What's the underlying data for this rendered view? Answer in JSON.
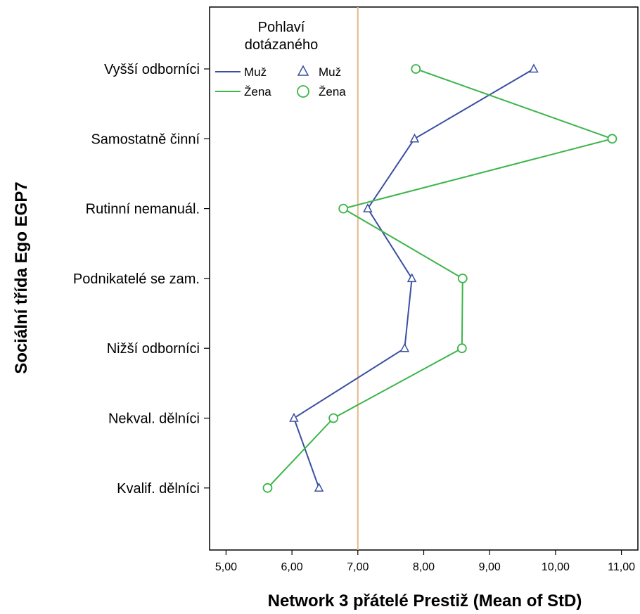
{
  "chart_data": {
    "type": "line",
    "orientation": "horizontal",
    "xlabel": "Network 3 přátelé Prestiž (Mean of StD)",
    "ylabel": "Sociální třída Ego EGP7",
    "xlim": [
      4.75,
      11.25
    ],
    "xticks": [
      5,
      6,
      7,
      8,
      9,
      10,
      11
    ],
    "xtick_labels": [
      "5,00",
      "6,00",
      "7,00",
      "8,00",
      "9,00",
      "10,00",
      "11,00"
    ],
    "reference_line": 7.0,
    "categories": [
      "Vyšší odborníci",
      "Samostatně činní",
      "Rutinní nemanuál.",
      "Podnikatelé se zam.",
      "Nižší odborníci",
      "Nekval. dělníci",
      "Kvalif. dělníci"
    ],
    "series": [
      {
        "name": "Muž",
        "marker": "triangle",
        "color": "#3a4fa0",
        "values": [
          9.67,
          7.86,
          7.15,
          7.82,
          7.71,
          6.03,
          6.41
        ]
      },
      {
        "name": "Žena",
        "marker": "circle",
        "color": "#3cb54a",
        "values": [
          7.88,
          10.86,
          6.78,
          8.59,
          8.58,
          6.63,
          5.63
        ]
      }
    ],
    "legend": {
      "title": "Pohlaví dotázaného",
      "title_lines": [
        "Pohlaví",
        "dotázaného"
      ],
      "placement": "top-left",
      "line_labels": [
        "Muž",
        "Žena"
      ],
      "marker_labels": [
        "Muž",
        "Žena"
      ]
    },
    "grid": false
  },
  "colors": {
    "reference_line": "#e8b98a"
  }
}
